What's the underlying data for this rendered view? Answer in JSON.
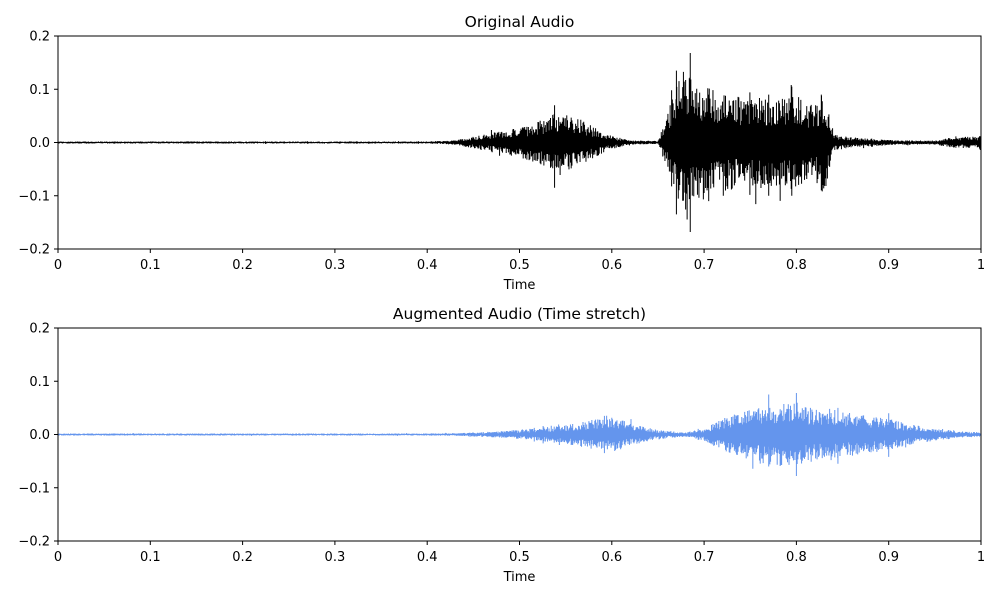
{
  "chart_data": [
    {
      "type": "line",
      "title": "Original Audio",
      "xlabel": "Time",
      "ylabel": "",
      "xlim": [
        0,
        1
      ],
      "ylim": [
        -0.2,
        0.2
      ],
      "xticks": [
        0,
        0.1,
        0.2,
        0.3,
        0.4,
        0.5,
        0.6,
        0.7,
        0.8,
        0.9,
        1
      ],
      "xtick_labels": [
        "0",
        "0.1",
        "0.2",
        "0.3",
        "0.4",
        "0.5",
        "0.6",
        "0.7",
        "0.8",
        "0.9",
        "1"
      ],
      "yticks": [
        -0.2,
        -0.1,
        0,
        0.1,
        0.2
      ],
      "ytick_labels": [
        "−0.2",
        "−0.1",
        "0.0",
        "0.1",
        "0.2"
      ],
      "color": "#000000",
      "grid": false,
      "series": [
        {
          "envelope_time": [
            0,
            0.1,
            0.2,
            0.3,
            0.4,
            0.43,
            0.46,
            0.5,
            0.52,
            0.54,
            0.56,
            0.58,
            0.6,
            0.62,
            0.65,
            0.66,
            0.67,
            0.68,
            0.69,
            0.7,
            0.72,
            0.74,
            0.76,
            0.78,
            0.8,
            0.82,
            0.83,
            0.84,
            0.86,
            0.88,
            0.9,
            0.93,
            0.95,
            0.97,
            1
          ],
          "envelope_amplitude": [
            0.002,
            0.002,
            0.002,
            0.002,
            0.002,
            0.004,
            0.015,
            0.028,
            0.04,
            0.055,
            0.05,
            0.03,
            0.012,
            0.004,
            0.003,
            0.05,
            0.12,
            0.16,
            0.1,
            0.11,
            0.095,
            0.085,
            0.09,
            0.085,
            0.09,
            0.07,
            0.1,
            0.015,
            0.01,
            0.007,
            0.005,
            0.004,
            0.004,
            0.01,
            0.012
          ],
          "peaks": [
            {
              "time": 0.538,
              "max": 0.07,
              "min": -0.085
            },
            {
              "time": 0.67,
              "max": 0.135,
              "min": -0.135
            },
            {
              "time": 0.685,
              "max": 0.168,
              "min": -0.168
            },
            {
              "time": 0.705,
              "max": 0.09,
              "min": -0.11
            },
            {
              "time": 0.77,
              "max": 0.09,
              "min": -0.1
            },
            {
              "time": 0.795,
              "max": 0.105,
              "min": -0.1
            },
            {
              "time": 0.827,
              "max": 0.09,
              "min": -0.09
            }
          ]
        }
      ]
    },
    {
      "type": "line",
      "title": "Augmented Audio (Time stretch)",
      "xlabel": "Time",
      "ylabel": "",
      "xlim": [
        0,
        1
      ],
      "ylim": [
        -0.2,
        0.2
      ],
      "xticks": [
        0,
        0.1,
        0.2,
        0.3,
        0.4,
        0.5,
        0.6,
        0.7,
        0.8,
        0.9,
        1
      ],
      "xtick_labels": [
        "0",
        "0.1",
        "0.2",
        "0.3",
        "0.4",
        "0.5",
        "0.6",
        "0.7",
        "0.8",
        "0.9",
        "1"
      ],
      "yticks": [
        -0.2,
        -0.1,
        0,
        0.1,
        0.2
      ],
      "ytick_labels": [
        "−0.2",
        "−0.1",
        "0.0",
        "0.1",
        "0.2"
      ],
      "color": "#6495ed",
      "grid": false,
      "series": [
        {
          "envelope_time": [
            0,
            0.1,
            0.2,
            0.3,
            0.4,
            0.44,
            0.48,
            0.52,
            0.55,
            0.58,
            0.6,
            0.62,
            0.64,
            0.66,
            0.68,
            0.7,
            0.72,
            0.74,
            0.76,
            0.78,
            0.8,
            0.82,
            0.84,
            0.86,
            0.88,
            0.9,
            0.92,
            0.95,
            0.98,
            1
          ],
          "envelope_amplitude": [
            0.002,
            0.002,
            0.002,
            0.002,
            0.002,
            0.003,
            0.006,
            0.012,
            0.018,
            0.028,
            0.034,
            0.022,
            0.012,
            0.007,
            0.004,
            0.012,
            0.03,
            0.042,
            0.055,
            0.06,
            0.06,
            0.05,
            0.048,
            0.04,
            0.035,
            0.03,
            0.02,
            0.012,
            0.006,
            0.004
          ],
          "peaks": [
            {
              "time": 0.592,
              "max": 0.035,
              "min": -0.035
            },
            {
              "time": 0.77,
              "max": 0.075,
              "min": -0.06
            },
            {
              "time": 0.8,
              "max": 0.078,
              "min": -0.078
            },
            {
              "time": 0.845,
              "max": 0.05,
              "min": -0.055
            },
            {
              "time": 0.9,
              "max": 0.04,
              "min": -0.042
            }
          ]
        }
      ]
    }
  ]
}
